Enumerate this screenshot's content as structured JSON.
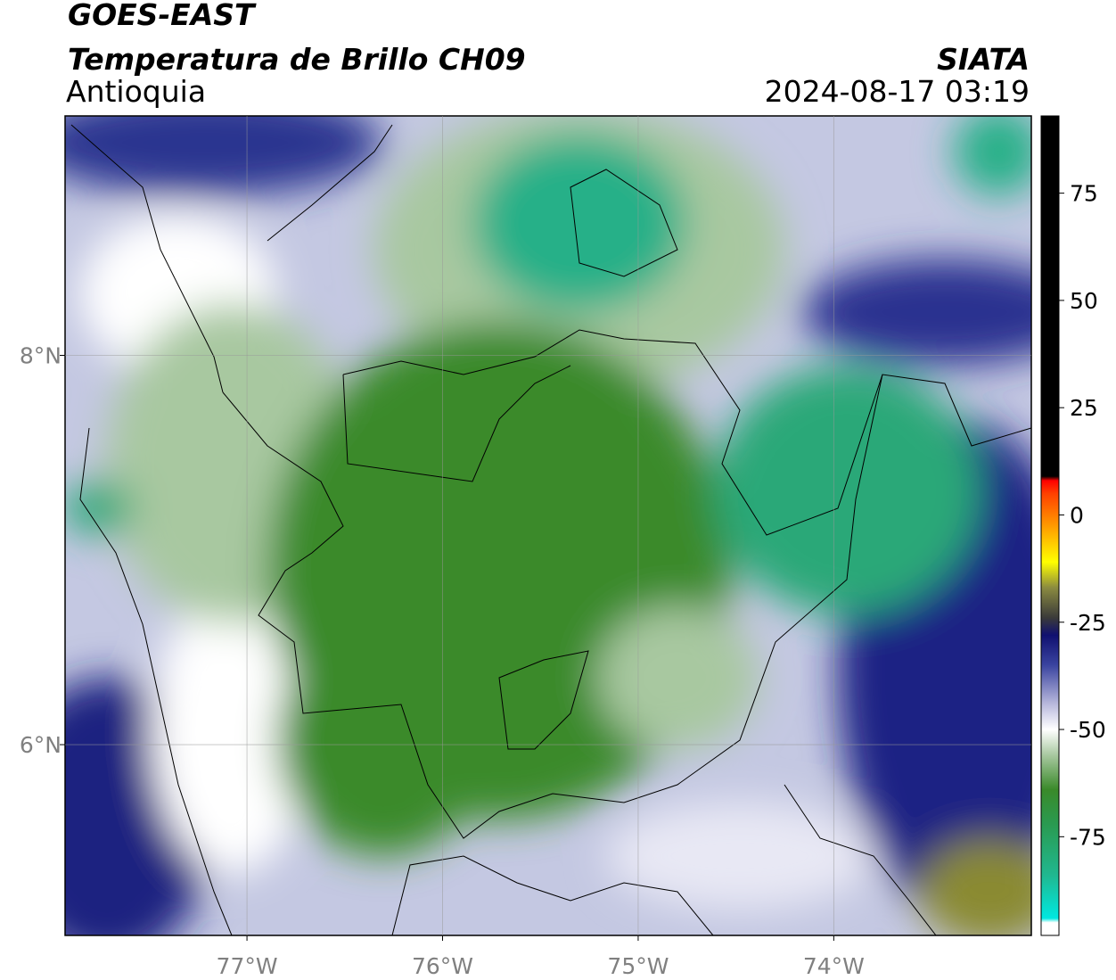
{
  "header": {
    "title": "GOES-EAST",
    "subtitle": "Temperatura de Brillo CH09",
    "region": "Antioquia",
    "source": "SIATA",
    "datetime": "2024-08-17 03:19"
  },
  "map": {
    "xlim": [
      -77.93,
      -72.99
    ],
    "ylim": [
      5.02,
      9.23
    ],
    "xticks": [
      {
        "value": -77,
        "label": "77°W"
      },
      {
        "value": -76,
        "label": "76°W"
      },
      {
        "value": -75,
        "label": "75°W"
      },
      {
        "value": -74,
        "label": "74°W"
      }
    ],
    "yticks": [
      {
        "value": 8,
        "label": "8°N"
      },
      {
        "value": 6,
        "label": "6°N"
      }
    ],
    "grid": true
  },
  "colorbar": {
    "lim": [
      -98,
      93
    ],
    "ticks": [
      -75,
      -50,
      -25,
      0,
      25,
      50,
      75
    ],
    "stops": [
      {
        "value": -98,
        "color": "#ffffff"
      },
      {
        "value": -95,
        "color": "#ffffff"
      },
      {
        "value": -94,
        "color": "#00e8e0"
      },
      {
        "value": -84,
        "color": "#20b890"
      },
      {
        "value": -72,
        "color": "#2a9a50"
      },
      {
        "value": -64,
        "color": "#3a8a2a"
      },
      {
        "value": -56,
        "color": "#a8c8a0"
      },
      {
        "value": -50,
        "color": "#ffffff"
      },
      {
        "value": -44,
        "color": "#b8b8dc"
      },
      {
        "value": -35,
        "color": "#3a44a0"
      },
      {
        "value": -28,
        "color": "#101070"
      },
      {
        "value": -24,
        "color": "#3a3a3a"
      },
      {
        "value": -17,
        "color": "#8a8a40"
      },
      {
        "value": -11,
        "color": "#ffff00"
      },
      {
        "value": -3,
        "color": "#ffa000"
      },
      {
        "value": 5,
        "color": "#ff4000"
      },
      {
        "value": 8,
        "color": "#ff0000"
      },
      {
        "value": 9,
        "color": "#000000"
      },
      {
        "value": 93,
        "color": "#000000"
      }
    ]
  }
}
